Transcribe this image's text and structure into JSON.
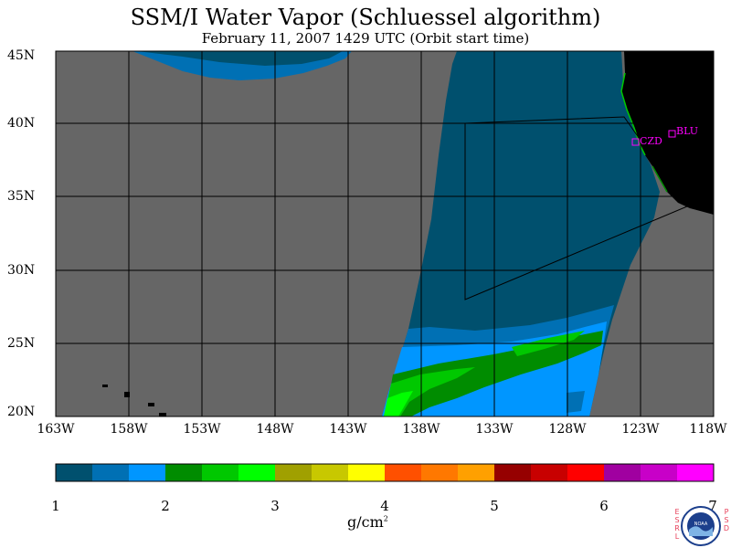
{
  "title": "SSM/I Water Vapor (Schluessel algorithm)",
  "subtitle": "February 11, 2007  1429 UTC  (Orbit start time)",
  "map": {
    "lat_labels": [
      "45N",
      "40N",
      "35N",
      "30N",
      "25N",
      "20N"
    ],
    "lon_labels": [
      "163W",
      "158W",
      "153W",
      "148W",
      "143W",
      "138W",
      "133W",
      "128W",
      "123W",
      "118W"
    ],
    "stations": [
      {
        "name": "CZD",
        "color": "#ff00ff"
      },
      {
        "name": "BLU",
        "color": "#ff00ff"
      }
    ],
    "colors": {
      "no_data": "#666666",
      "land": "#000000",
      "wv_1_1_5": "#00506e",
      "wv_1_5_2": "#0070b4",
      "wv_2": "#0096ff",
      "green_dark": "#008c00",
      "green": "#00c800",
      "green_light": "#00ff00"
    }
  },
  "colorbar": {
    "colors": [
      "#00506e",
      "#0070b4",
      "#0096ff",
      "#008c00",
      "#00c800",
      "#00ff00",
      "#a0a000",
      "#c8c800",
      "#ffff00",
      "#ff5000",
      "#ff7800",
      "#ffa000",
      "#960000",
      "#c80000",
      "#ff0000",
      "#a000a0",
      "#c800c8",
      "#ff00ff"
    ],
    "ticks": [
      "1",
      "2",
      "3",
      "4",
      "5",
      "6",
      "7"
    ],
    "units_base": "g/cm",
    "units_exp": "2"
  },
  "logo": {
    "left_text": "ESRL",
    "right_text": "PSD",
    "center_text": "NOAA"
  }
}
